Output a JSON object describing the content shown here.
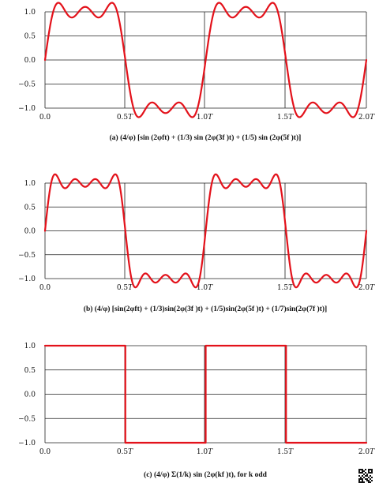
{
  "chart_data": [
    {
      "type": "line",
      "function": "(4/pi)*[sin(2*pi*f*t) + (1/3)sin(2*pi*3f*t) + (1/5)sin(2*pi*5f*t)]",
      "harmonics": [
        1,
        3,
        5
      ],
      "x_ticks": [
        "0.0",
        "0.5T",
        "1.0T",
        "1.5T",
        "2.0T"
      ],
      "y_ticks": [
        "1.0",
        "0.5",
        "0.0",
        "−0.5",
        "−1.0"
      ],
      "xlim": [
        0,
        2
      ],
      "ylim": [
        -1.0,
        1.0
      ],
      "grid": true,
      "caption": "(a) (4/φ) [sin (2φft) + (1/3) sin (2φ(3f )t) + (1/5) sin (2φ(5f )t)]"
    },
    {
      "type": "line",
      "function": "(4/pi)*[sin(2*pi*f*t) + (1/3)sin(2*pi*3f*t) + (1/5)sin(2*pi*5f*t) + (1/7)sin(2*pi*7f*t)]",
      "harmonics": [
        1,
        3,
        5,
        7
      ],
      "x_ticks": [
        "0.0",
        "0.5T",
        "1.0T",
        "1.5T",
        "2.0T"
      ],
      "y_ticks": [
        "1.0",
        "0.5",
        "0.0",
        "−0.5",
        "−1.0"
      ],
      "xlim": [
        0,
        2
      ],
      "ylim": [
        -1.0,
        1.0
      ],
      "grid": true,
      "caption": "(b) (4/φ) [sin(2φft) + (1/3)sin(2φ(3f )t) + (1/5)sin(2φ(5f )t) + (1/7)sin(2φ(7f )t)]"
    },
    {
      "type": "line",
      "function": "square wave",
      "x": [
        0,
        0.5,
        0.5,
        1.0,
        1.0,
        1.5,
        1.5,
        2.0
      ],
      "y": [
        1,
        1,
        -1,
        -1,
        1,
        1,
        -1,
        -1
      ],
      "x_ticks": [
        "0.0",
        "0.5T",
        "1.0T",
        "1.5T",
        "2.0T"
      ],
      "y_ticks": [
        "1.0",
        "0.5",
        "0.0",
        "−0.5",
        "−1.0"
      ],
      "xlim": [
        0,
        2
      ],
      "ylim": [
        -1.0,
        1.0
      ],
      "grid": true,
      "caption": "(c) (4/φ) Σ(1/k) sin (2φ(kf )t),  for k odd"
    }
  ],
  "colors": {
    "curve": "#e3121b",
    "grid": "#222222",
    "text": "#111111"
  },
  "icons": {
    "corner": "qr-code-icon"
  }
}
